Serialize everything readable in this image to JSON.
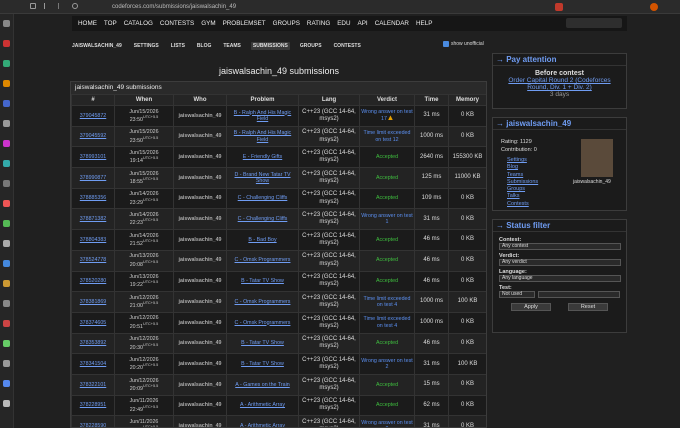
{
  "browser": {
    "url": "codeforces.com/submissions/jaiswalsachin_49"
  },
  "nav": [
    "HOME",
    "TOP",
    "CATALOG",
    "CONTESTS",
    "GYM",
    "PROBLEMSET",
    "GROUPS",
    "RATING",
    "EDU",
    "API",
    "CALENDAR",
    "HELP"
  ],
  "subnav": {
    "items": [
      "JAISWALSACHIN_49",
      "SETTINGS",
      "LISTS",
      "BLOG",
      "TEAMS",
      "SUBMISSIONS",
      "GROUPS",
      "CONTESTS"
    ],
    "active": 5
  },
  "show_unofficial": "show unofficial",
  "title": "jaiswalsachin_49 submissions",
  "table": {
    "caption": "jaiswalsachin_49 submissions",
    "headers": [
      "#",
      "When",
      "Who",
      "Problem",
      "Lang",
      "Verdict",
      "Time",
      "Memory"
    ],
    "rows": [
      {
        "id": "379045872",
        "date": "Jun/15/2026 23:50",
        "tz": "UTC+5.5",
        "who": "jaiswalsachin_49",
        "problem": "B - Ralph And His Magic Field",
        "lang": "C++23 (GCC 14-64, msys2)",
        "verdict": "Wrong answer on test 17",
        "verdict_color": "#5b8ff0",
        "time": "31 ms",
        "memory": "0 KB"
      },
      {
        "id": "379045592",
        "date": "Jun/15/2026 23:50",
        "tz": "UTC+5.5",
        "who": "jaiswalsachin_49",
        "problem": "B - Ralph And His Magic Field",
        "lang": "C++23 (GCC 14-64, msys2)",
        "verdict": "Time limit exceeded on test 12",
        "verdict_color": "#5b8ff0",
        "time": "1000 ms",
        "memory": "0 KB"
      },
      {
        "id": "378993101",
        "date": "Jun/15/2026 19:14",
        "tz": "UTC+5.5",
        "who": "jaiswalsachin_49",
        "problem": "E - Friendly Gifts",
        "lang": "C++23 (GCC 14-64, msys2)",
        "verdict": "Accepted",
        "verdict_color": "#3fbf3f",
        "time": "2640 ms",
        "memory": "155300 KB"
      },
      {
        "id": "378990877",
        "date": "Jun/15/2026 18:55",
        "tz": "UTC+5.5",
        "who": "jaiswalsachin_49",
        "problem": "D - Brand New Tatar TV Show",
        "lang": "C++23 (GCC 14-64, msys2)",
        "verdict": "Accepted",
        "verdict_color": "#3fbf3f",
        "time": "125 ms",
        "memory": "11000 KB"
      },
      {
        "id": "378885356",
        "date": "Jun/14/2026 23:29",
        "tz": "UTC+5.5",
        "who": "jaiswalsachin_49",
        "problem": "C - Challenging Cliffs",
        "lang": "C++23 (GCC 14-64, msys2)",
        "verdict": "Accepted",
        "verdict_color": "#3fbf3f",
        "time": "109 ms",
        "memory": "0 KB"
      },
      {
        "id": "378871382",
        "date": "Jun/14/2026 22:23",
        "tz": "UTC+5.5",
        "who": "jaiswalsachin_49",
        "problem": "C - Challenging Cliffs",
        "lang": "C++23 (GCC 14-64, msys2)",
        "verdict": "Wrong answer on test 1",
        "verdict_color": "#5b8ff0",
        "time": "31 ms",
        "memory": "0 KB"
      },
      {
        "id": "378804383",
        "date": "Jun/14/2026 21:52",
        "tz": "UTC+5.5",
        "who": "jaiswalsachin_49",
        "problem": "B - Bad Boy",
        "lang": "C++23 (GCC 14-64, msys2)",
        "verdict": "Accepted",
        "verdict_color": "#3fbf3f",
        "time": "46 ms",
        "memory": "0 KB"
      },
      {
        "id": "378524778",
        "date": "Jun/13/2026 20:08",
        "tz": "UTC+5.5",
        "who": "jaiswalsachin_49",
        "problem": "C - Omsk Programmers",
        "lang": "C++23 (GCC 14-64, msys2)",
        "verdict": "Accepted",
        "verdict_color": "#3fbf3f",
        "time": "46 ms",
        "memory": "0 KB"
      },
      {
        "id": "378520280",
        "date": "Jun/13/2026 19:22",
        "tz": "UTC+5.5",
        "who": "jaiswalsachin_49",
        "problem": "B - Tatar TV Show",
        "lang": "C++23 (GCC 14-64, msys2)",
        "verdict": "Accepted",
        "verdict_color": "#3fbf3f",
        "time": "46 ms",
        "memory": "0 KB"
      },
      {
        "id": "378381869",
        "date": "Jun/12/2026 21:00",
        "tz": "UTC+5.5",
        "who": "jaiswalsachin_49",
        "problem": "C - Omsk Programmers",
        "lang": "C++23 (GCC 14-64, msys2)",
        "verdict": "Time limit exceeded on test 4",
        "verdict_color": "#5b8ff0",
        "time": "1000 ms",
        "memory": "100 KB"
      },
      {
        "id": "378374605",
        "date": "Jun/12/2026 20:51",
        "tz": "UTC+5.5",
        "who": "jaiswalsachin_49",
        "problem": "C - Omsk Programmers",
        "lang": "C++23 (GCC 14-64, msys2)",
        "verdict": "Time limit exceeded on test 4",
        "verdict_color": "#5b8ff0",
        "time": "1000 ms",
        "memory": "0 KB"
      },
      {
        "id": "378353892",
        "date": "Jun/12/2026 20:30",
        "tz": "UTC+5.5",
        "who": "jaiswalsachin_49",
        "problem": "B - Tatar TV Show",
        "lang": "C++23 (GCC 14-64, msys2)",
        "verdict": "Accepted",
        "verdict_color": "#3fbf3f",
        "time": "46 ms",
        "memory": "0 KB"
      },
      {
        "id": "378341504",
        "date": "Jun/12/2026 20:20",
        "tz": "UTC+5.5",
        "who": "jaiswalsachin_49",
        "problem": "B - Tatar TV Show",
        "lang": "C++23 (GCC 14-64, msys2)",
        "verdict": "Wrong answer on test 2",
        "verdict_color": "#5b8ff0",
        "time": "31 ms",
        "memory": "100 KB"
      },
      {
        "id": "378322101",
        "date": "Jun/12/2026 20:09",
        "tz": "UTC+5.5",
        "who": "jaiswalsachin_49",
        "problem": "A - Games on the Train",
        "lang": "C++23 (GCC 14-64, msys2)",
        "verdict": "Accepted",
        "verdict_color": "#3fbf3f",
        "time": "15 ms",
        "memory": "0 KB"
      },
      {
        "id": "378228951",
        "date": "Jun/11/2026 22:49",
        "tz": "UTC+5.5",
        "who": "jaiswalsachin_49",
        "problem": "A - Arithmetic Array",
        "lang": "C++23 (GCC 14-64, msys2)",
        "verdict": "Accepted",
        "verdict_color": "#3fbf3f",
        "time": "62 ms",
        "memory": "0 KB"
      },
      {
        "id": "378228590",
        "date": "Jun/11/2026 22:40",
        "tz": "UTC+5.5",
        "who": "jaiswalsachin_49",
        "problem": "A - Arithmetic Array",
        "lang": "C++23 (GCC 14-64, msys2)",
        "verdict": "Wrong answer on test 2",
        "verdict_color": "#5b8ff0",
        "time": "31 ms",
        "memory": "0 KB"
      }
    ]
  },
  "attention": {
    "title": "→ Pay attention",
    "subtitle": "Before contest",
    "contest": "Order Capital Round 2 (Codeforces Round, Div. 1 + Div. 2)",
    "countdown": "3 days"
  },
  "user": {
    "title": "→ jaiswalsachin_49",
    "rating": "Rating: 1129",
    "contribution": "Contribution: 0",
    "links": [
      "Settings",
      "Blog",
      "Teams",
      "Submissions",
      "Groups",
      "Talks",
      "Contests"
    ],
    "avatar_caption": "jaiswalsachin_49"
  },
  "filter": {
    "title": "→ Status filter",
    "contest_label": "Contest:",
    "contest": "Any contest",
    "verdict_label": "Verdict:",
    "verdict": "Any verdict",
    "language_label": "Language:",
    "language": "Any language",
    "test_label": "Test:",
    "test": "Not used",
    "apply": "Apply",
    "reset": "Reset"
  }
}
